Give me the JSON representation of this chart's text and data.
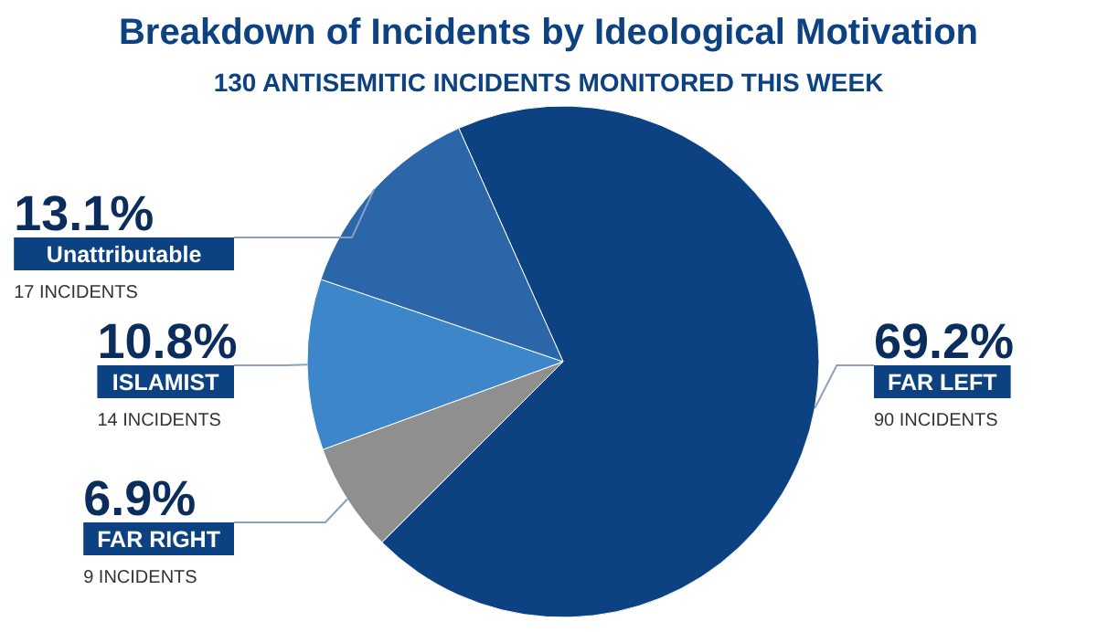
{
  "chart_data": {
    "type": "pie",
    "title": "Breakdown of Incidents by Ideological Motivation",
    "subtitle": "130 ANTISEMITIC INCIDENTS MONITORED THIS WEEK",
    "categories": [
      "FAR LEFT",
      "FAR RIGHT",
      "ISLAMIST",
      "Unattributable"
    ],
    "values": [
      69.2,
      6.9,
      10.8,
      13.1
    ],
    "colors": [
      "#0d4282",
      "#8f8f8f",
      "#3d86c9",
      "#2b66a8"
    ],
    "value_labels": [
      "69.2%",
      "6.9%",
      "10.8%",
      "13.1%"
    ],
    "annotations": [
      "90 INCIDENTS",
      "9 INCIDENTS",
      "14 INCIDENTS",
      "17 INCIDENTS"
    ]
  }
}
